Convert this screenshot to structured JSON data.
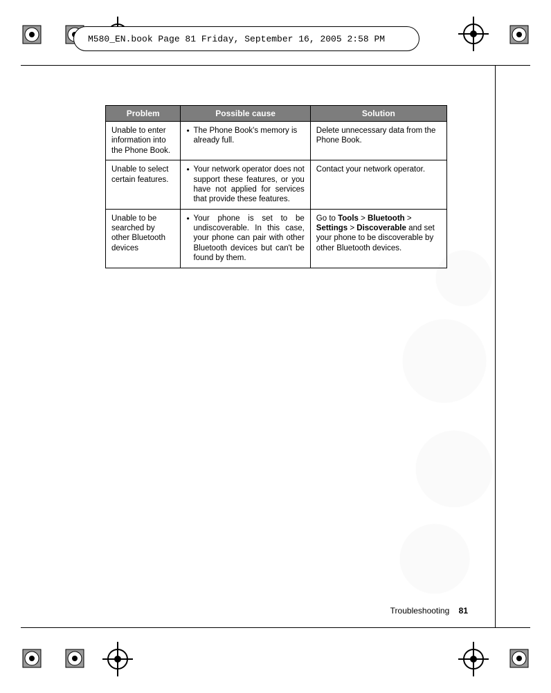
{
  "header": {
    "text": "M580_EN.book  Page 81  Friday, September 16, 2005  2:58 PM"
  },
  "table": {
    "headers": {
      "problem": "Problem",
      "cause": "Possible cause",
      "solution": "Solution"
    },
    "rows": [
      {
        "problem": "Unable to enter information into the Phone Book.",
        "cause": "The Phone Book's memory is already full.",
        "solution_plain": "Delete unnecessary data from the Phone Book.",
        "cause_justify": false
      },
      {
        "problem": "Unable to select certain features.",
        "cause": "Your network operator does not support these features, or you have not applied for services that provide these features.",
        "solution_plain": "Contact your network operator.",
        "cause_justify": true
      },
      {
        "problem": "Unable to be searched by other Bluetooth devices",
        "cause": "Your phone is set to be undiscoverable. In this case, your phone can pair with other Bluetooth devices but can't be found by them.",
        "solution_html": "Go to <b>Tools</b> > <b>Bluetooth</b> > <b>Settings</b> > <b>Discoverable</b> and set your phone to be discoverable by other Bluetooth devices.",
        "cause_justify": true
      }
    ]
  },
  "footer": {
    "section": "Troubleshooting",
    "page": "81"
  },
  "style": {
    "header_bg": "#7d7d7d",
    "header_fg": "#ffffff",
    "border": "#000000",
    "body_font": "Arial",
    "mono_font": "Courier New",
    "font_size_body": 11.5,
    "font_size_header": 12,
    "font_size_footer": 12
  }
}
